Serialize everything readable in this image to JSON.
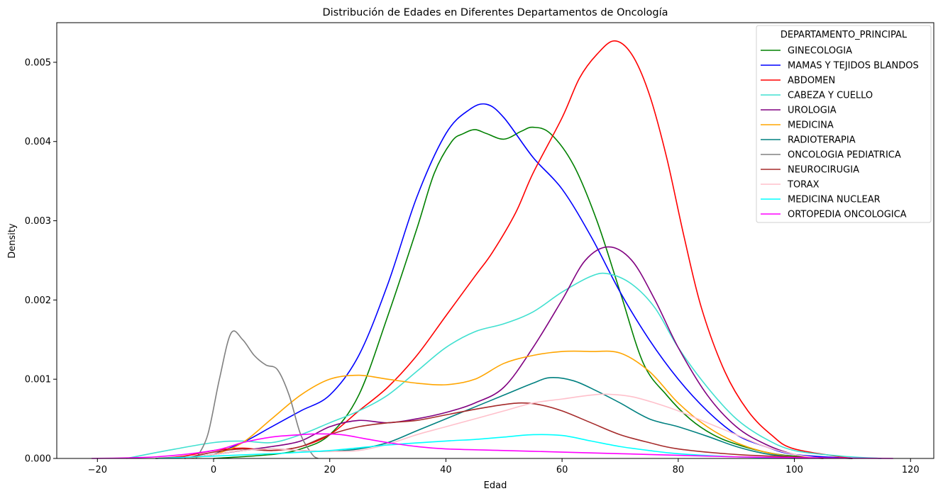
{
  "chart_data": {
    "type": "line",
    "title": "Distribución de Edades en Diferentes Departamentos de Oncología",
    "xlabel": "Edad",
    "ylabel": "Density",
    "xlim": [
      -27,
      124
    ],
    "ylim": [
      0,
      0.0055
    ],
    "xticks": [
      -20,
      0,
      20,
      40,
      60,
      80,
      100,
      120
    ],
    "yticks": [
      0,
      0.001,
      0.002,
      0.003,
      0.004,
      0.005
    ],
    "ytick_labels": [
      "0.000",
      "0.001",
      "0.002",
      "0.003",
      "0.004",
      "0.005"
    ],
    "grid": false,
    "legend": {
      "title": "DEPARTAMENTO_PRINCIPAL",
      "placement": "top-right"
    },
    "series": [
      {
        "name": "GINECOLOGIA",
        "color": "#008000",
        "points": [
          [
            0,
            0
          ],
          [
            10,
            5e-05
          ],
          [
            15,
            0.00012
          ],
          [
            20,
            0.0003
          ],
          [
            25,
            0.0008
          ],
          [
            30,
            0.0018
          ],
          [
            35,
            0.0029
          ],
          [
            38,
            0.0036
          ],
          [
            41,
            0.004
          ],
          [
            43,
            0.0041
          ],
          [
            45,
            0.00415
          ],
          [
            47,
            0.0041
          ],
          [
            50,
            0.00403
          ],
          [
            53,
            0.00413
          ],
          [
            55,
            0.00418
          ],
          [
            58,
            0.0041
          ],
          [
            62,
            0.0037
          ],
          [
            66,
            0.003
          ],
          [
            70,
            0.0021
          ],
          [
            74,
            0.0012
          ],
          [
            78,
            0.0008
          ],
          [
            82,
            0.0005
          ],
          [
            86,
            0.0003
          ],
          [
            90,
            0.00018
          ],
          [
            95,
            8e-05
          ],
          [
            100,
            3e-05
          ],
          [
            110,
            0
          ]
        ]
      },
      {
        "name": "MAMAS Y TEJIDOS BLANDOS",
        "color": "#0000ff",
        "points": [
          [
            0,
            5e-05
          ],
          [
            5,
            0.0002
          ],
          [
            10,
            0.0004
          ],
          [
            15,
            0.0006
          ],
          [
            20,
            0.0008
          ],
          [
            25,
            0.0013
          ],
          [
            30,
            0.0022
          ],
          [
            35,
            0.0033
          ],
          [
            40,
            0.0041
          ],
          [
            44,
            0.0044
          ],
          [
            47,
            0.00447
          ],
          [
            50,
            0.0043
          ],
          [
            55,
            0.0038
          ],
          [
            60,
            0.0034
          ],
          [
            65,
            0.0028
          ],
          [
            70,
            0.0021
          ],
          [
            75,
            0.0015
          ],
          [
            80,
            0.001
          ],
          [
            85,
            0.0006
          ],
          [
            90,
            0.0003
          ],
          [
            95,
            0.00015
          ],
          [
            100,
            5e-05
          ],
          [
            110,
            0
          ]
        ]
      },
      {
        "name": "ABDOMEN",
        "color": "#ff0000",
        "points": [
          [
            -10,
            0
          ],
          [
            -5,
            3e-05
          ],
          [
            0,
            0.0001
          ],
          [
            5,
            0.00013
          ],
          [
            10,
            0.0001
          ],
          [
            15,
            0.00015
          ],
          [
            20,
            0.0003
          ],
          [
            25,
            0.0006
          ],
          [
            30,
            0.0009
          ],
          [
            35,
            0.0013
          ],
          [
            40,
            0.0018
          ],
          [
            45,
            0.0023
          ],
          [
            48,
            0.0026
          ],
          [
            52,
            0.0031
          ],
          [
            55,
            0.0036
          ],
          [
            60,
            0.0043
          ],
          [
            63,
            0.0048
          ],
          [
            66,
            0.0051
          ],
          [
            69,
            0.00527
          ],
          [
            72,
            0.0051
          ],
          [
            75,
            0.0046
          ],
          [
            78,
            0.0038
          ],
          [
            81,
            0.0028
          ],
          [
            84,
            0.0019
          ],
          [
            88,
            0.0011
          ],
          [
            92,
            0.0006
          ],
          [
            96,
            0.0003
          ],
          [
            100,
            0.00012
          ],
          [
            110,
            0
          ]
        ]
      },
      {
        "name": "CABEZA Y CUELLO",
        "color": "#40e0d0",
        "points": [
          [
            -15,
            0
          ],
          [
            -8,
            0.0001
          ],
          [
            0,
            0.0002
          ],
          [
            5,
            0.00022
          ],
          [
            10,
            0.0002
          ],
          [
            15,
            0.0003
          ],
          [
            20,
            0.00045
          ],
          [
            25,
            0.0006
          ],
          [
            30,
            0.0008
          ],
          [
            35,
            0.0011
          ],
          [
            40,
            0.0014
          ],
          [
            45,
            0.0016
          ],
          [
            50,
            0.0017
          ],
          [
            55,
            0.00185
          ],
          [
            60,
            0.0021
          ],
          [
            65,
            0.0023
          ],
          [
            68,
            0.00233
          ],
          [
            72,
            0.0022
          ],
          [
            76,
            0.0019
          ],
          [
            80,
            0.0014
          ],
          [
            85,
            0.0009
          ],
          [
            90,
            0.0005
          ],
          [
            95,
            0.00025
          ],
          [
            100,
            0.0001
          ],
          [
            108,
            3e-05
          ],
          [
            115,
            0
          ]
        ]
      },
      {
        "name": "UROLOGIA",
        "color": "#800080",
        "points": [
          [
            -5,
            0
          ],
          [
            0,
            5e-05
          ],
          [
            5,
            0.0001
          ],
          [
            10,
            0.00015
          ],
          [
            15,
            0.00022
          ],
          [
            20,
            0.0004
          ],
          [
            25,
            0.00048
          ],
          [
            30,
            0.00045
          ],
          [
            35,
            0.0005
          ],
          [
            40,
            0.00058
          ],
          [
            45,
            0.0007
          ],
          [
            50,
            0.0009
          ],
          [
            55,
            0.0014
          ],
          [
            60,
            0.002
          ],
          [
            64,
            0.0025
          ],
          [
            68,
            0.00267
          ],
          [
            72,
            0.0025
          ],
          [
            76,
            0.002
          ],
          [
            80,
            0.0014
          ],
          [
            85,
            0.0008
          ],
          [
            90,
            0.0004
          ],
          [
            95,
            0.00018
          ],
          [
            100,
            5e-05
          ],
          [
            105,
            0
          ]
        ]
      },
      {
        "name": "MEDICINA",
        "color": "#ffa500",
        "points": [
          [
            -5,
            0
          ],
          [
            0,
            5e-05
          ],
          [
            5,
            0.0002
          ],
          [
            10,
            0.0005
          ],
          [
            15,
            0.0008
          ],
          [
            20,
            0.001
          ],
          [
            25,
            0.00105
          ],
          [
            30,
            0.001
          ],
          [
            35,
            0.00095
          ],
          [
            40,
            0.00093
          ],
          [
            45,
            0.001
          ],
          [
            50,
            0.0012
          ],
          [
            55,
            0.0013
          ],
          [
            60,
            0.00135
          ],
          [
            65,
            0.00135
          ],
          [
            70,
            0.00133
          ],
          [
            75,
            0.0011
          ],
          [
            80,
            0.0007
          ],
          [
            85,
            0.0004
          ],
          [
            90,
            0.0002
          ],
          [
            95,
            8e-05
          ],
          [
            100,
            2e-05
          ],
          [
            105,
            0
          ]
        ]
      },
      {
        "name": "RADIOTERAPIA",
        "color": "#008080",
        "points": [
          [
            -5,
            0
          ],
          [
            0,
            5e-05
          ],
          [
            5,
            0.0001
          ],
          [
            10,
            0.00012
          ],
          [
            15,
            0.0001
          ],
          [
            20,
            9e-05
          ],
          [
            25,
            0.00012
          ],
          [
            30,
            0.0002
          ],
          [
            35,
            0.00035
          ],
          [
            40,
            0.0005
          ],
          [
            45,
            0.00065
          ],
          [
            50,
            0.0008
          ],
          [
            55,
            0.00095
          ],
          [
            58,
            0.00102
          ],
          [
            62,
            0.00098
          ],
          [
            66,
            0.00085
          ],
          [
            70,
            0.0007
          ],
          [
            75,
            0.0005
          ],
          [
            80,
            0.0004
          ],
          [
            85,
            0.00028
          ],
          [
            90,
            0.00015
          ],
          [
            95,
            6e-05
          ],
          [
            100,
            2e-05
          ],
          [
            105,
            0
          ]
        ]
      },
      {
        "name": "ONCOLOGIA PEDIATRICA",
        "color": "#808080",
        "points": [
          [
            -3,
            0
          ],
          [
            -1,
            0.0003
          ],
          [
            1,
            0.001
          ],
          [
            3,
            0.00158
          ],
          [
            5,
            0.0015
          ],
          [
            7,
            0.0013
          ],
          [
            9,
            0.00118
          ],
          [
            11,
            0.00112
          ],
          [
            13,
            0.0008
          ],
          [
            15,
            0.0003
          ],
          [
            17,
            5e-05
          ],
          [
            18,
            0
          ]
        ]
      },
      {
        "name": "NEUROCIRUGIA",
        "color": "#a52a2a",
        "points": [
          [
            -5,
            0
          ],
          [
            0,
            8e-05
          ],
          [
            5,
            0.00012
          ],
          [
            10,
            0.0001
          ],
          [
            15,
            0.00015
          ],
          [
            20,
            0.0003
          ],
          [
            25,
            0.0004
          ],
          [
            30,
            0.00045
          ],
          [
            35,
            0.00048
          ],
          [
            40,
            0.00055
          ],
          [
            45,
            0.00062
          ],
          [
            50,
            0.00068
          ],
          [
            53,
            0.0007
          ],
          [
            56,
            0.00068
          ],
          [
            60,
            0.0006
          ],
          [
            65,
            0.00045
          ],
          [
            70,
            0.0003
          ],
          [
            75,
            0.0002
          ],
          [
            80,
            0.00012
          ],
          [
            90,
            5e-05
          ],
          [
            100,
            2e-05
          ],
          [
            110,
            0
          ]
        ]
      },
      {
        "name": "TORAX",
        "color": "#ffc0cb",
        "points": [
          [
            -5,
            0
          ],
          [
            0,
            5e-05
          ],
          [
            5,
            0.0001
          ],
          [
            10,
            0.00012
          ],
          [
            15,
            0.0001
          ],
          [
            20,
            9e-05
          ],
          [
            25,
            0.0001
          ],
          [
            30,
            0.00018
          ],
          [
            35,
            0.0003
          ],
          [
            40,
            0.0004
          ],
          [
            45,
            0.0005
          ],
          [
            50,
            0.0006
          ],
          [
            55,
            0.0007
          ],
          [
            60,
            0.00075
          ],
          [
            65,
            0.0008
          ],
          [
            68,
            0.00081
          ],
          [
            72,
            0.00078
          ],
          [
            76,
            0.0007
          ],
          [
            80,
            0.0006
          ],
          [
            85,
            0.00045
          ],
          [
            90,
            0.0003
          ],
          [
            95,
            0.00015
          ],
          [
            100,
            5e-05
          ],
          [
            105,
            0
          ]
        ]
      },
      {
        "name": "MEDICINA NUCLEAR",
        "color": "#00ffff",
        "points": [
          [
            -10,
            0
          ],
          [
            0,
            3e-05
          ],
          [
            10,
            6e-05
          ],
          [
            20,
            0.0001
          ],
          [
            30,
            0.00017
          ],
          [
            40,
            0.00022
          ],
          [
            45,
            0.00024
          ],
          [
            50,
            0.00027
          ],
          [
            55,
            0.0003
          ],
          [
            60,
            0.00029
          ],
          [
            65,
            0.00022
          ],
          [
            70,
            0.00015
          ],
          [
            75,
            0.0001
          ],
          [
            80,
            6e-05
          ],
          [
            90,
            2e-05
          ],
          [
            100,
            0
          ]
        ]
      },
      {
        "name": "ORTOPEDIA ONCOLOGICA",
        "color": "#ff00ff",
        "points": [
          [
            -21,
            0
          ],
          [
            -10,
            2e-05
          ],
          [
            0,
            0.0001
          ],
          [
            5,
            0.0002
          ],
          [
            10,
            0.00027
          ],
          [
            15,
            0.0003
          ],
          [
            18,
            0.00031
          ],
          [
            22,
            0.0003
          ],
          [
            26,
            0.00025
          ],
          [
            30,
            0.0002
          ],
          [
            35,
            0.00015
          ],
          [
            40,
            0.00012
          ],
          [
            50,
            0.0001
          ],
          [
            60,
            8e-05
          ],
          [
            70,
            6e-05
          ],
          [
            80,
            4e-05
          ],
          [
            90,
            2e-05
          ],
          [
            100,
            1e-05
          ],
          [
            117,
            0
          ]
        ]
      }
    ]
  }
}
